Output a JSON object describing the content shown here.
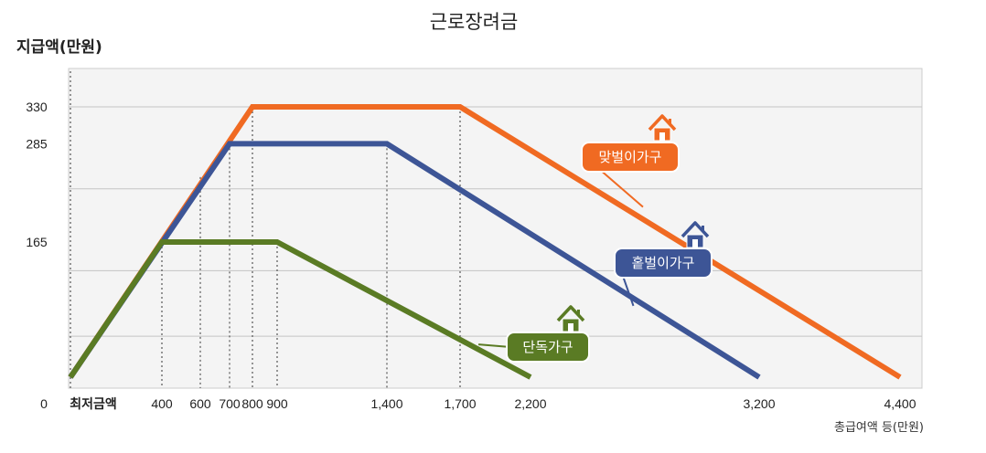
{
  "chart_data": {
    "type": "line",
    "title": "근로장려금",
    "ylabel": "지급액(만원)",
    "xlabel": "총급여액 등(만원)",
    "ylim": [
      0,
      400
    ],
    "y_ticks": [
      330,
      285,
      165
    ],
    "x_origin_label": "0",
    "x_min_label": "최저금액",
    "x_ticks": [
      {
        "value": 400,
        "label": "400"
      },
      {
        "value": 600,
        "label": "600"
      },
      {
        "value": 700,
        "label": "700"
      },
      {
        "value": 800,
        "label": "800"
      },
      {
        "value": 900,
        "label": "900"
      },
      {
        "value": 1400,
        "label": "1,400"
      },
      {
        "value": 1700,
        "label": "1,700"
      },
      {
        "value": 2200,
        "label": "2,200"
      },
      {
        "value": 3200,
        "label": "3,200"
      },
      {
        "value": 4400,
        "label": "4,400"
      }
    ],
    "grid": true,
    "series": [
      {
        "name": "맞벌이가구",
        "color": "#f06a22",
        "x": [
          0,
          800,
          1700,
          4400
        ],
        "y": [
          0,
          330,
          330,
          0
        ]
      },
      {
        "name": "홑벌이가구",
        "color": "#3d5596",
        "x": [
          0,
          700,
          1400,
          3200
        ],
        "y": [
          0,
          285,
          285,
          0
        ]
      },
      {
        "name": "단독가구",
        "color": "#5a7b24",
        "x": [
          0,
          400,
          900,
          2200
        ],
        "y": [
          0,
          165,
          165,
          0
        ]
      }
    ]
  }
}
